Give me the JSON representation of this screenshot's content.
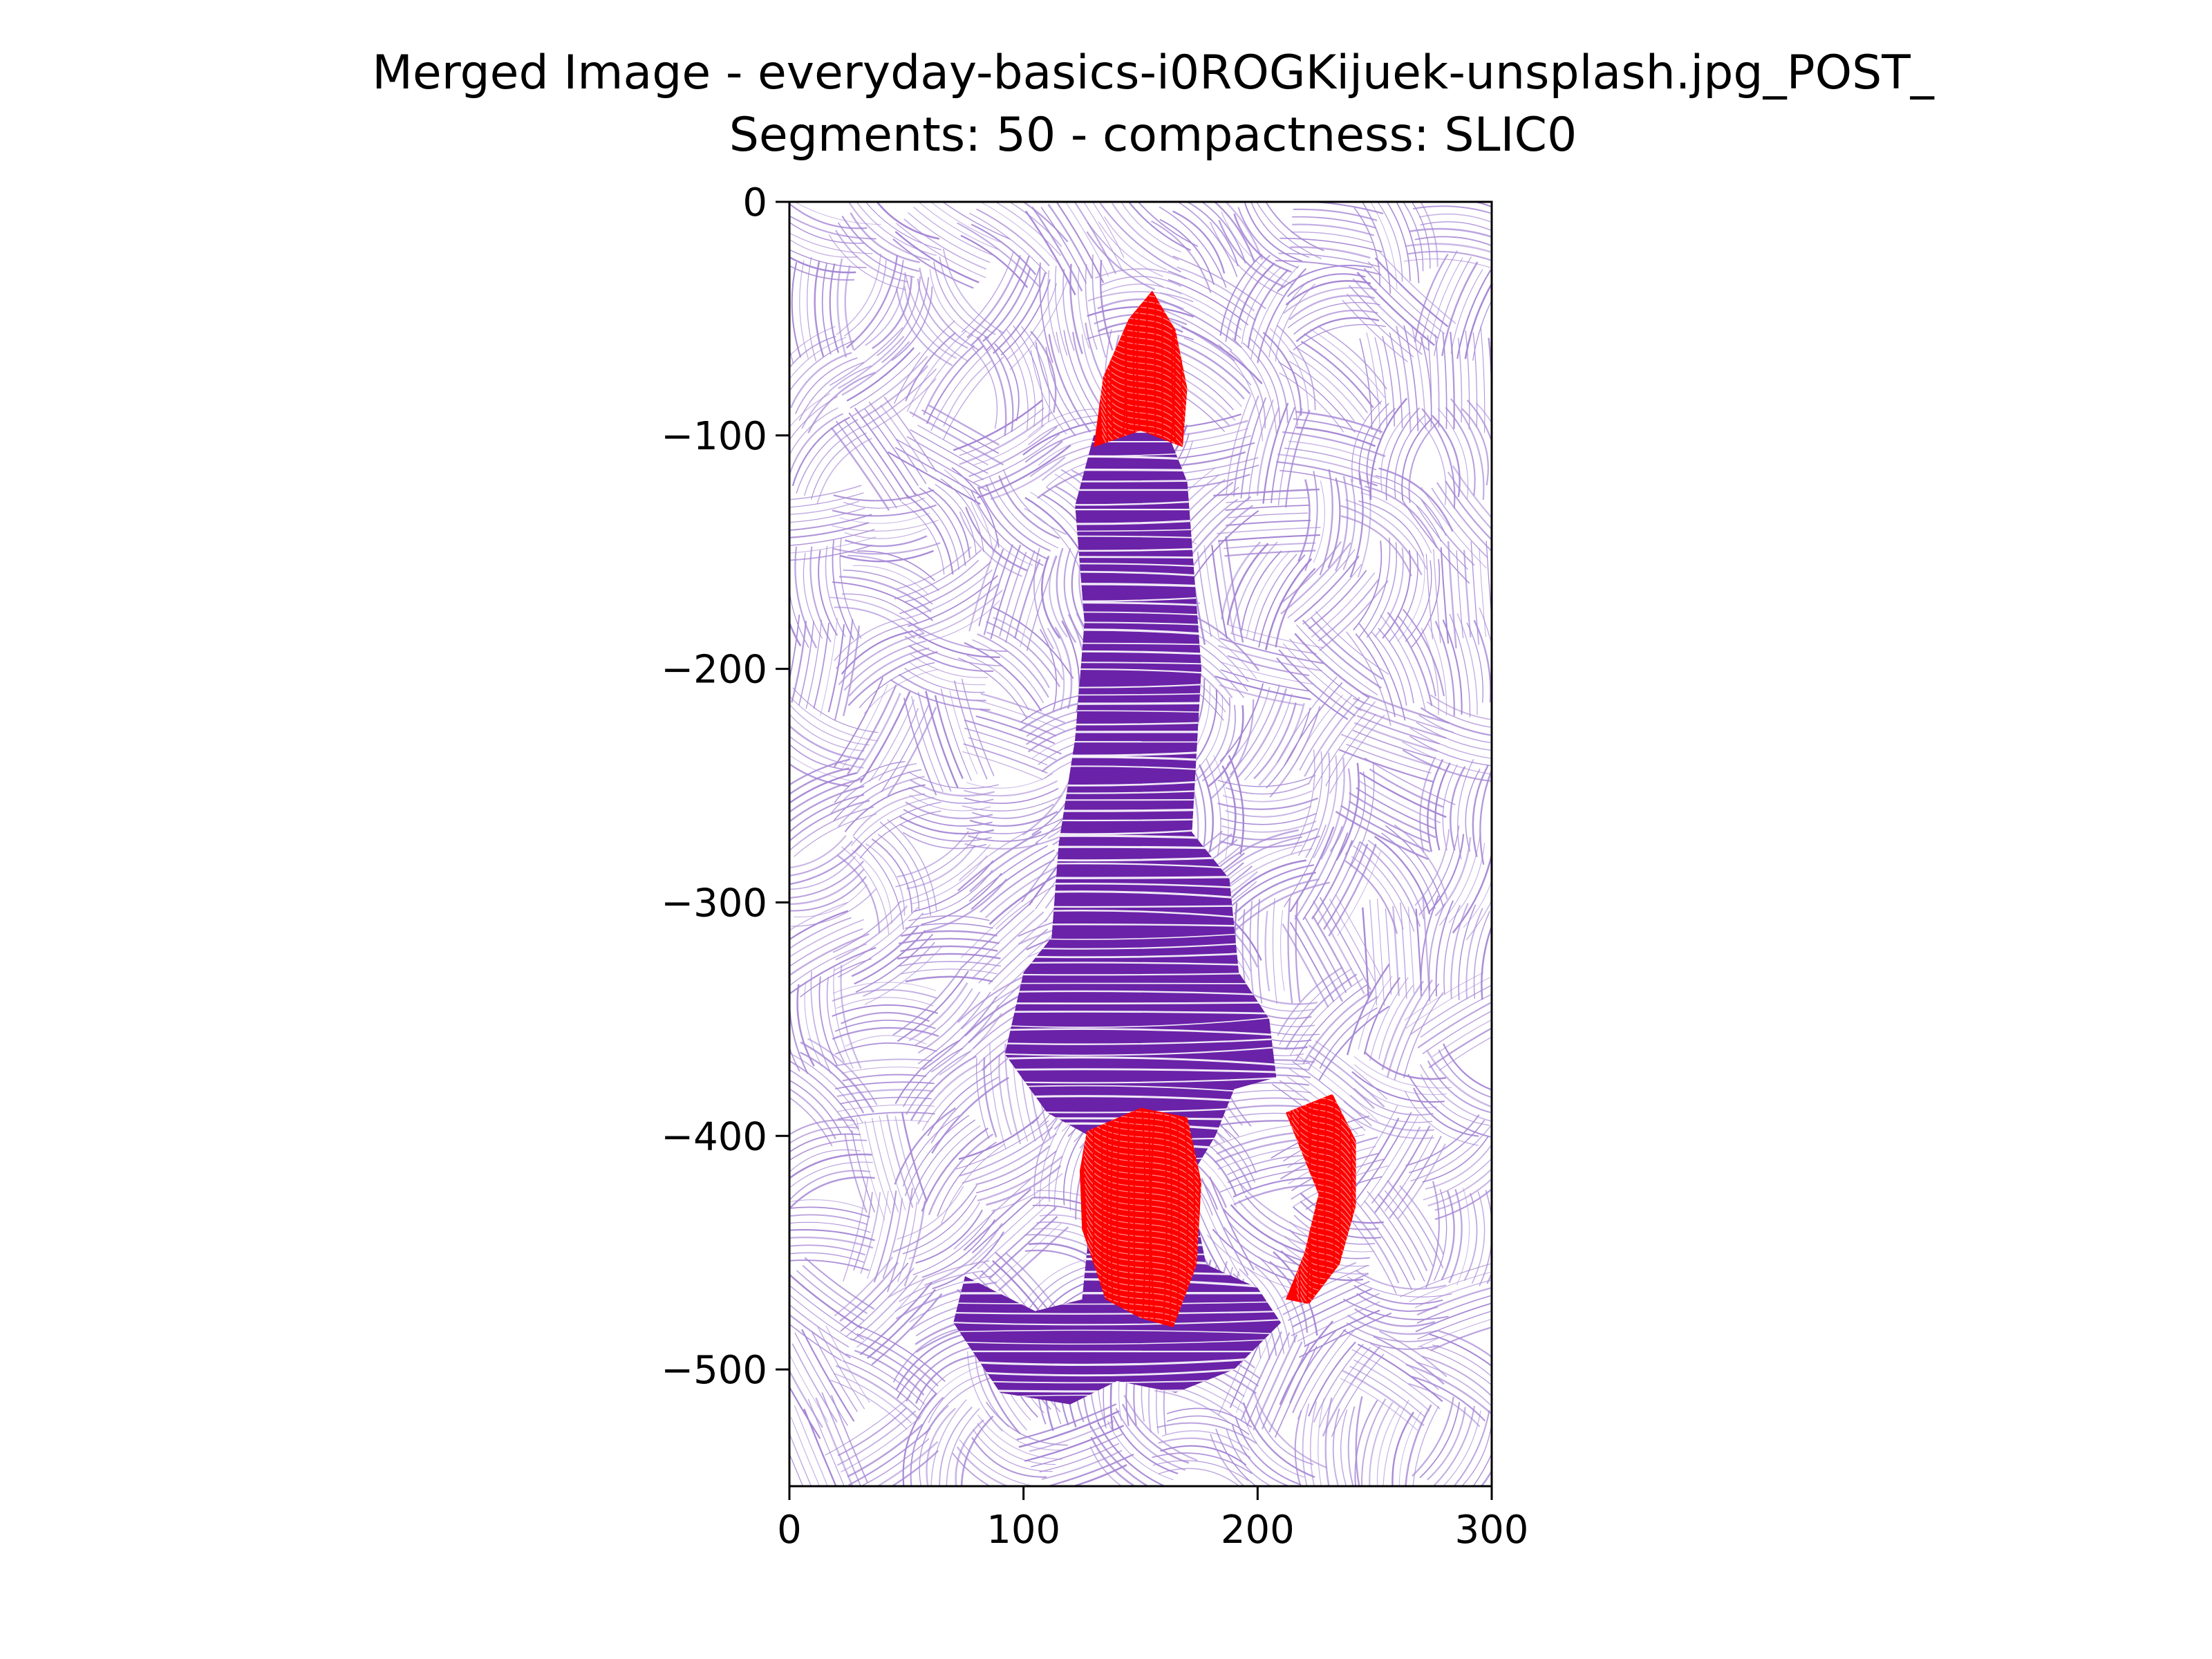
{
  "chart_data": {
    "type": "streamplot",
    "title_lines": [
      "Merged Image - everyday-basics-i0ROGKijuek-unsplash.jpg_POST_",
      "Segments: 50 - compactness: SLIC0"
    ],
    "xlim": [
      0,
      300
    ],
    "ylim": [
      -550,
      0
    ],
    "x_ticks": [
      0,
      100,
      200,
      300
    ],
    "y_ticks": [
      0,
      -100,
      -200,
      -300,
      -400,
      -500
    ],
    "x_tick_labels": [
      "0",
      "100",
      "200",
      "300"
    ],
    "y_tick_labels": [
      "0",
      "−100",
      "−200",
      "−300",
      "−400",
      "−500"
    ],
    "grid": false,
    "legend": "none",
    "colors": {
      "background_stream": "#a586d4",
      "object_stream": "#6a22a8",
      "highlight_stream": "#ff0000"
    },
    "regions": [
      {
        "name": "object",
        "color": "#6a22a8",
        "outline": [
          [
            130,
            -100
          ],
          [
            160,
            -95
          ],
          [
            170,
            -120
          ],
          [
            176,
            -200
          ],
          [
            172,
            -270
          ],
          [
            188,
            -290
          ],
          [
            192,
            -330
          ],
          [
            205,
            -350
          ],
          [
            208,
            -375
          ],
          [
            190,
            -380
          ],
          [
            182,
            -400
          ],
          [
            170,
            -420
          ],
          [
            175,
            -440
          ],
          [
            178,
            -455
          ],
          [
            200,
            -465
          ],
          [
            210,
            -480
          ],
          [
            190,
            -500
          ],
          [
            165,
            -510
          ],
          [
            140,
            -505
          ],
          [
            120,
            -515
          ],
          [
            90,
            -510
          ],
          [
            70,
            -480
          ],
          [
            75,
            -460
          ],
          [
            105,
            -475
          ],
          [
            125,
            -470
          ],
          [
            128,
            -440
          ],
          [
            128,
            -400
          ],
          [
            110,
            -390
          ],
          [
            92,
            -365
          ],
          [
            100,
            -330
          ],
          [
            112,
            -315
          ],
          [
            115,
            -275
          ],
          [
            122,
            -230
          ],
          [
            126,
            -180
          ],
          [
            122,
            -130
          ]
        ]
      },
      {
        "name": "tip-highlight",
        "color": "#ff0000",
        "outline": [
          [
            130,
            -105
          ],
          [
            134,
            -75
          ],
          [
            145,
            -50
          ],
          [
            155,
            -38
          ],
          [
            165,
            -55
          ],
          [
            170,
            -80
          ],
          [
            168,
            -105
          ],
          [
            150,
            -98
          ]
        ]
      },
      {
        "name": "handle-left-highlight",
        "color": "#ff0000",
        "outline": [
          [
            127,
            -398
          ],
          [
            150,
            -388
          ],
          [
            170,
            -392
          ],
          [
            176,
            -420
          ],
          [
            174,
            -455
          ],
          [
            164,
            -482
          ],
          [
            150,
            -478
          ],
          [
            135,
            -470
          ],
          [
            125,
            -440
          ],
          [
            124,
            -415
          ]
        ]
      },
      {
        "name": "handle-right-highlight",
        "color": "#ff0000",
        "outline": [
          [
            212,
            -390
          ],
          [
            232,
            -382
          ],
          [
            242,
            -402
          ],
          [
            242,
            -430
          ],
          [
            235,
            -455
          ],
          [
            222,
            -472
          ],
          [
            212,
            -470
          ],
          [
            220,
            -450
          ],
          [
            226,
            -425
          ],
          [
            218,
            -405
          ]
        ]
      }
    ]
  }
}
